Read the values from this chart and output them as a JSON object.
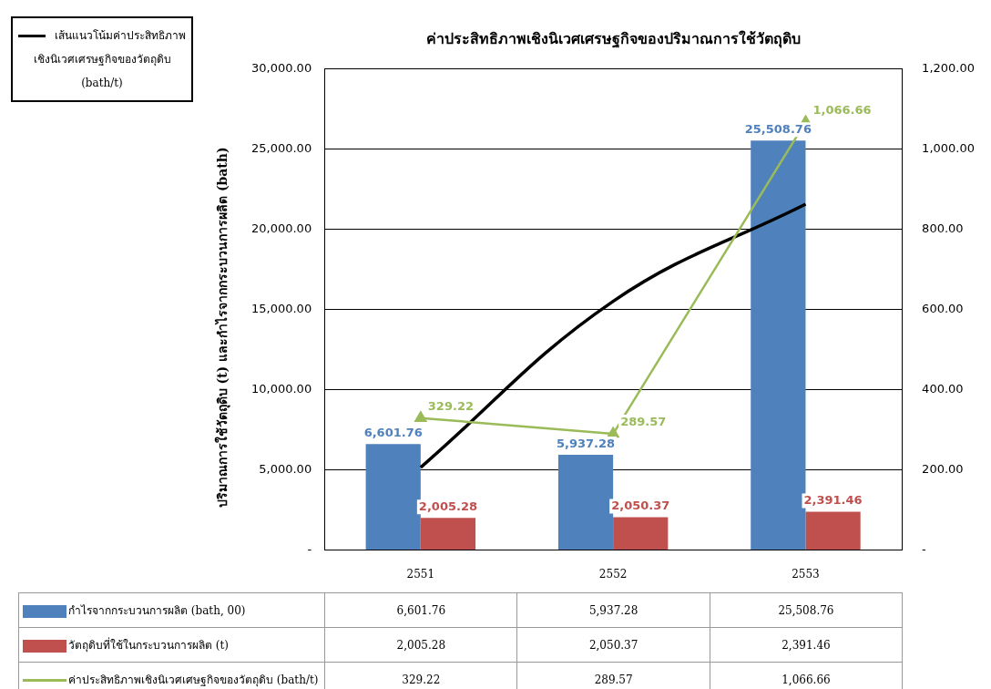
{
  "chart_data": {
    "type": "bar",
    "title": "ค่าประสิทธิภาพเชิงนิเวศเศรษฐกิจของปริมาณการใช้วัตถุดิบ",
    "ylabel": "ปริมาณการใช้วัตถุดิบ (t) และกำไรจากกระบวนการผลิต (bath)",
    "categories": [
      "2551",
      "2552",
      "2553"
    ],
    "series": [
      {
        "name": "กำไรจากกระบวนการผลิต (bath, 00)",
        "color": "#4f81bd",
        "values": [
          6601.76,
          5937.28,
          25508.76
        ],
        "value_labels": [
          "6,601.76",
          "5,937.28",
          "25,508.76"
        ]
      },
      {
        "name": "วัตถุดิบที่ใช้ในกระบวนการผลิต (t)",
        "color": "#c0504d",
        "values": [
          2005.28,
          2050.37,
          2391.46
        ],
        "value_labels": [
          "2,005.28",
          "2,050.37",
          "2,391.46"
        ]
      },
      {
        "name": "ค่าประสิทธิภาพเชิงนิเวศเศษฐกิจของวัตถุดิบ (bath/t)",
        "type": "line",
        "axis": "y2",
        "color": "#9bbb59",
        "marker": "triangle",
        "values": [
          329.22,
          289.57,
          1066.66
        ],
        "value_labels": [
          "329.22",
          "289.57",
          "1,066.66"
        ]
      },
      {
        "name": "เส้นแนวโน้มค่าประสิทธิภาพเชิงนิเวศเศรษฐกิจของวัตถุดิบ (bath/t)",
        "type": "line",
        "axis": "y2",
        "color": "#000000",
        "marker": "none",
        "values": [
          206,
          620,
          862
        ]
      }
    ],
    "ylim": [
      0,
      30000
    ],
    "yticks": [
      {
        "value": 0,
        "label": "-"
      },
      {
        "value": 5000,
        "label": "5,000.00"
      },
      {
        "value": 10000,
        "label": "10,000.00"
      },
      {
        "value": 15000,
        "label": "15,000.00"
      },
      {
        "value": 20000,
        "label": "20,000.00"
      },
      {
        "value": 25000,
        "label": "25,000.00"
      },
      {
        "value": 30000,
        "label": "30,000.00"
      }
    ],
    "y2lim": [
      0,
      1200
    ],
    "y2ticks": [
      {
        "value": 0,
        "label": "-"
      },
      {
        "value": 200,
        "label": "200.00"
      },
      {
        "value": 400,
        "label": "400.00"
      },
      {
        "value": 600,
        "label": "600.00"
      },
      {
        "value": 800,
        "label": "800.00"
      },
      {
        "value": 1000,
        "label": "1,000.00"
      },
      {
        "value": 1200,
        "label": "1,200.00"
      }
    ],
    "grid": "y",
    "legend": "bottom"
  }
}
